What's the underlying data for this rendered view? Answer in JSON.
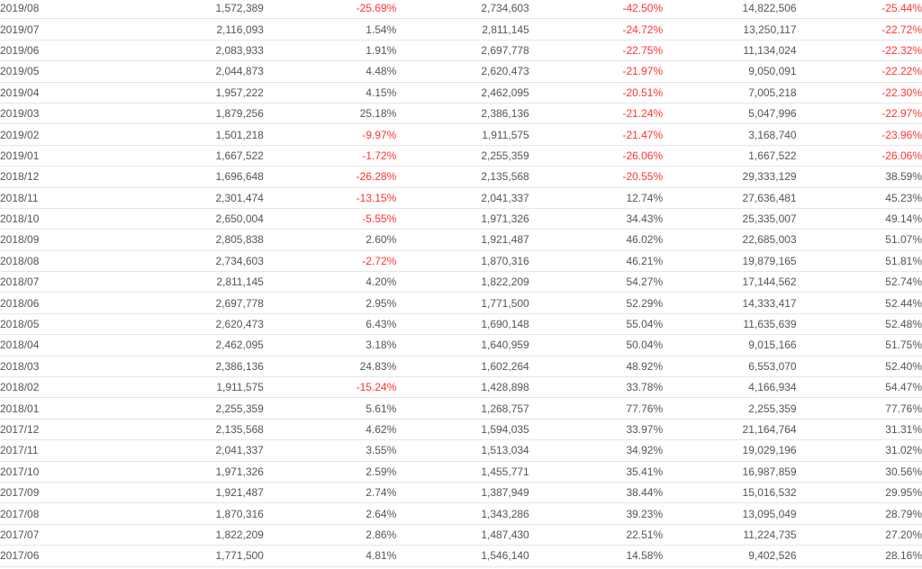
{
  "colors": {
    "negative": "#ff3333",
    "text": "#555555",
    "rule": "#e6e6e6"
  },
  "table": {
    "rows": [
      [
        "2019/08",
        "1,572,389",
        "-25.69%",
        "2,734,603",
        "-42.50%",
        "14,822,506",
        "-25.44%"
      ],
      [
        "2019/07",
        "2,116,093",
        "1.54%",
        "2,811,145",
        "-24.72%",
        "13,250,117",
        "-22.72%"
      ],
      [
        "2019/06",
        "2,083,933",
        "1.91%",
        "2,697,778",
        "-22.75%",
        "11,134,024",
        "-22.32%"
      ],
      [
        "2019/05",
        "2,044,873",
        "4.48%",
        "2,620,473",
        "-21.97%",
        "9,050,091",
        "-22.22%"
      ],
      [
        "2019/04",
        "1,957,222",
        "4.15%",
        "2,462,095",
        "-20.51%",
        "7,005,218",
        "-22.30%"
      ],
      [
        "2019/03",
        "1,879,256",
        "25.18%",
        "2,386,136",
        "-21.24%",
        "5,047,996",
        "-22.97%"
      ],
      [
        "2019/02",
        "1,501,218",
        "-9.97%",
        "1,911,575",
        "-21.47%",
        "3,168,740",
        "-23.96%"
      ],
      [
        "2019/01",
        "1,667,522",
        "-1.72%",
        "2,255,359",
        "-26.06%",
        "1,667,522",
        "-26.06%"
      ],
      [
        "2018/12",
        "1,696,648",
        "-26.28%",
        "2,135,568",
        "-20.55%",
        "29,333,129",
        "38.59%"
      ],
      [
        "2018/11",
        "2,301,474",
        "-13.15%",
        "2,041,337",
        "12.74%",
        "27,636,481",
        "45.23%"
      ],
      [
        "2018/10",
        "2,650,004",
        "-5.55%",
        "1,971,326",
        "34.43%",
        "25,335,007",
        "49.14%"
      ],
      [
        "2018/09",
        "2,805,838",
        "2.60%",
        "1,921,487",
        "46.02%",
        "22,685,003",
        "51.07%"
      ],
      [
        "2018/08",
        "2,734,603",
        "-2.72%",
        "1,870,316",
        "46.21%",
        "19,879,165",
        "51.81%"
      ],
      [
        "2018/07",
        "2,811,145",
        "4.20%",
        "1,822,209",
        "54.27%",
        "17,144,562",
        "52.74%"
      ],
      [
        "2018/06",
        "2,697,778",
        "2.95%",
        "1,771,500",
        "52.29%",
        "14,333,417",
        "52.44%"
      ],
      [
        "2018/05",
        "2,620,473",
        "6.43%",
        "1,690,148",
        "55.04%",
        "11,635,639",
        "52.48%"
      ],
      [
        "2018/04",
        "2,462,095",
        "3.18%",
        "1,640,959",
        "50.04%",
        "9,015,166",
        "51.75%"
      ],
      [
        "2018/03",
        "2,386,136",
        "24.83%",
        "1,602,264",
        "48.92%",
        "6,553,070",
        "52.40%"
      ],
      [
        "2018/02",
        "1,911,575",
        "-15.24%",
        "1,428,898",
        "33.78%",
        "4,166,934",
        "54.47%"
      ],
      [
        "2018/01",
        "2,255,359",
        "5.61%",
        "1,268,757",
        "77.76%",
        "2,255,359",
        "77.76%"
      ],
      [
        "2017/12",
        "2,135,568",
        "4.62%",
        "1,594,035",
        "33.97%",
        "21,164,764",
        "31.31%"
      ],
      [
        "2017/11",
        "2,041,337",
        "3.55%",
        "1,513,034",
        "34.92%",
        "19,029,196",
        "31.02%"
      ],
      [
        "2017/10",
        "1,971,326",
        "2.59%",
        "1,455,771",
        "35.41%",
        "16,987,859",
        "30.56%"
      ],
      [
        "2017/09",
        "1,921,487",
        "2.74%",
        "1,387,949",
        "38.44%",
        "15,016,532",
        "29.95%"
      ],
      [
        "2017/08",
        "1,870,316",
        "2.64%",
        "1,343,286",
        "39.23%",
        "13,095,049",
        "28.79%"
      ],
      [
        "2017/07",
        "1,822,209",
        "2.86%",
        "1,487,430",
        "22.51%",
        "11,224,735",
        "27.20%"
      ],
      [
        "2017/06",
        "1,771,500",
        "4.81%",
        "1,546,140",
        "14.58%",
        "9,402,526",
        "28.16%"
      ]
    ]
  }
}
